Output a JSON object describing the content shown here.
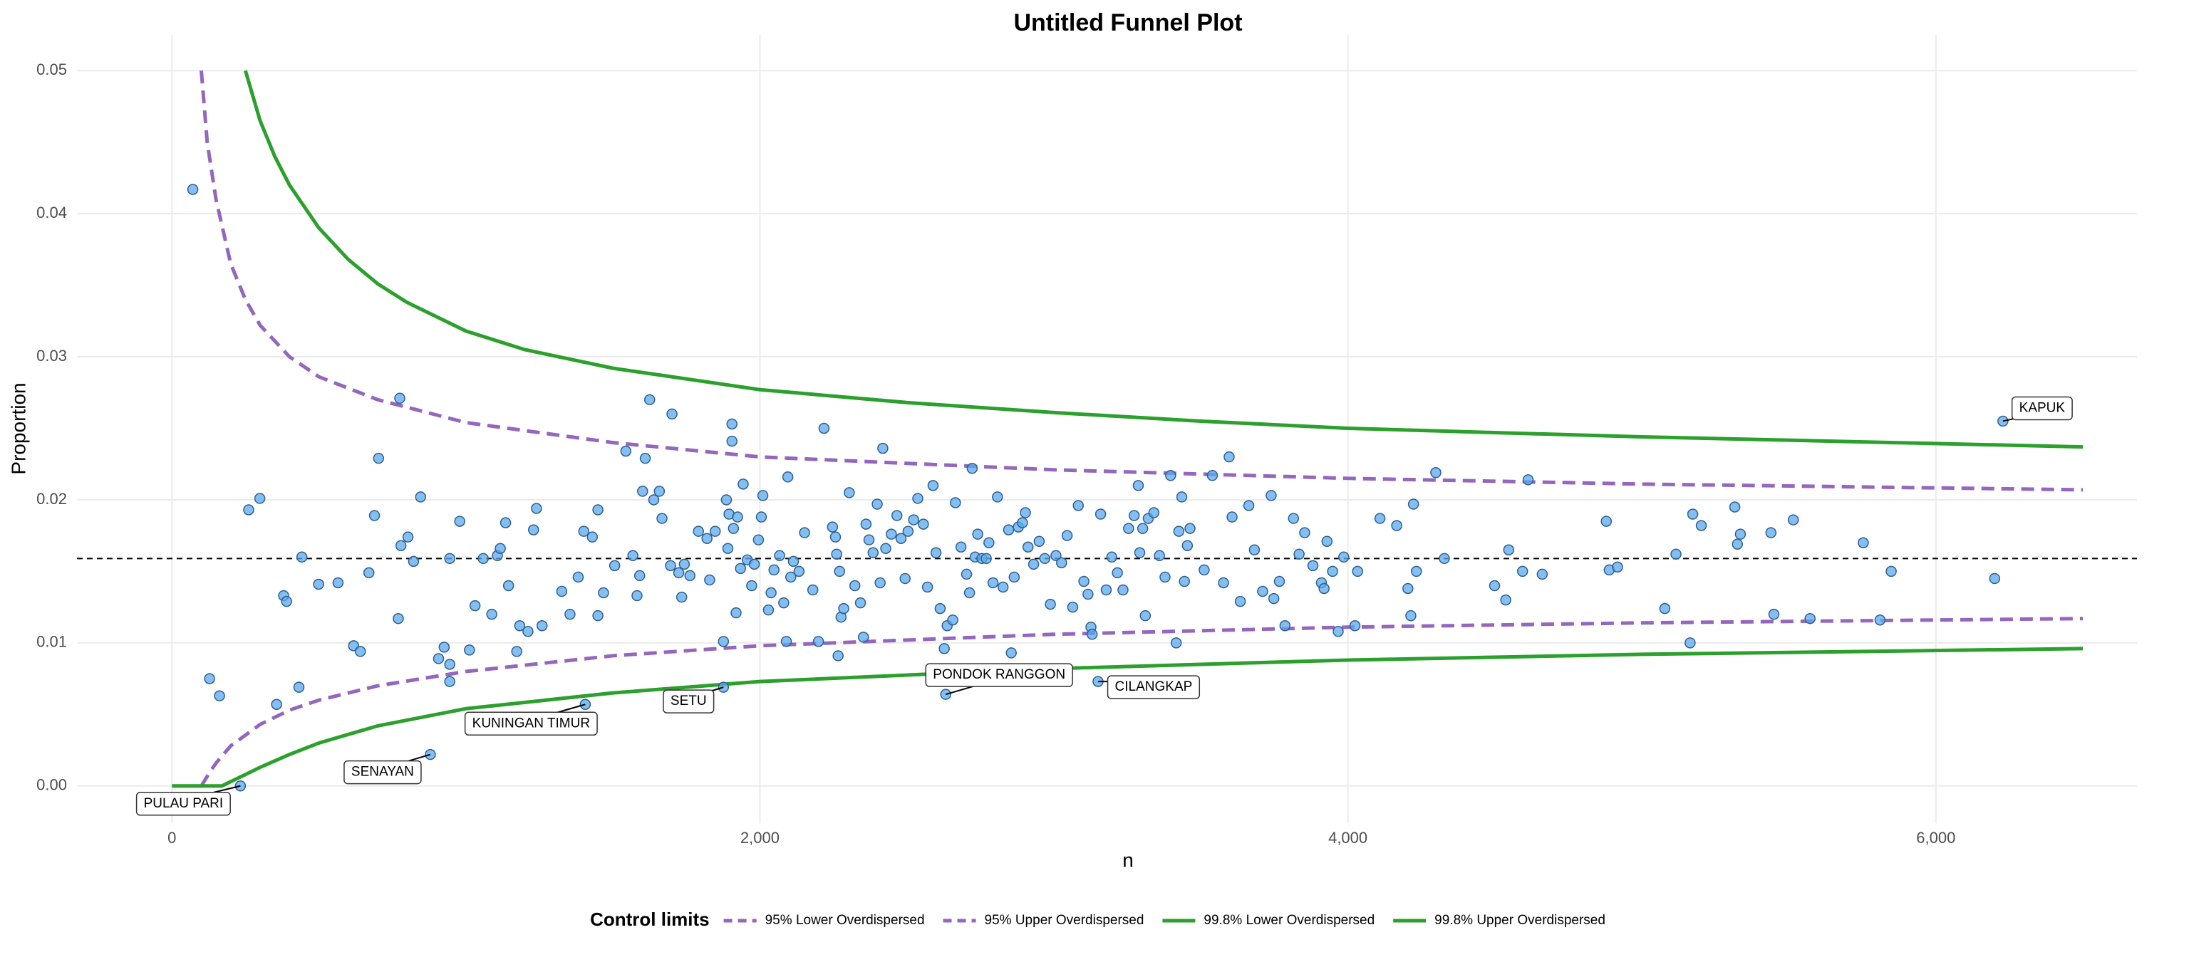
{
  "chart_data": {
    "type": "scatter",
    "title": "Untitled Funnel Plot",
    "x_label": "n",
    "y_label": "Proportion",
    "xlim": [
      -323,
      6684
    ],
    "ylim": [
      -0.0026,
      0.0525
    ],
    "xticks": [
      0,
      {
        "value": 2000,
        "label": "2,000"
      },
      {
        "value": 4000,
        "label": "4,000"
      },
      {
        "value": 6000,
        "label": "6,000"
      }
    ],
    "yticks": [
      {
        "value": 0,
        "label": "0.00"
      },
      0.01,
      0.02,
      0.03,
      0.04,
      0.05
    ],
    "grid": true,
    "reference_line": 0.0159,
    "points": {
      "color": "#5aaaf0",
      "x": [
        71,
        128,
        162,
        261,
        299,
        356,
        380,
        390,
        432,
        442,
        499,
        565,
        618,
        641,
        670,
        689,
        703,
        770,
        775,
        779,
        803,
        822,
        846,
        907,
        926,
        945,
        945,
        945,
        979,
        1012,
        1031,
        1059,
        1088,
        1107,
        1117,
        1135,
        1145,
        1173,
        1183,
        1211,
        1230,
        1240,
        1259,
        1326,
        1354,
        1382,
        1401,
        1430,
        1449,
        1449,
        1468,
        1506,
        1544,
        1568,
        1582,
        1591,
        1601,
        1610,
        1625,
        1639,
        1658,
        1667,
        1696,
        1701,
        1724,
        1734,
        1743,
        1762,
        1791,
        1820,
        1829,
        1848,
        1876,
        1886,
        1891,
        1895,
        1905,
        1905,
        1910,
        1919,
        1924,
        1934,
        1943,
        1957,
        1972,
        1981,
        1995,
        2005,
        2010,
        2029,
        2038,
        2048,
        2067,
        2081,
        2090,
        2095,
        2105,
        2114,
        2133,
        2152,
        2180,
        2199,
        2218,
        2247,
        2257,
        2261,
        2266,
        2271,
        2276,
        2285,
        2304,
        2323,
        2342,
        2352,
        2361,
        2371,
        2385,
        2399,
        2409,
        2418,
        2428,
        2447,
        2466,
        2480,
        2494,
        2504,
        2523,
        2537,
        2556,
        2570,
        2589,
        2599,
        2613,
        2627,
        2637,
        2656,
        2665,
        2684,
        2703,
        2713,
        2722,
        2732,
        2741,
        2755,
        2770,
        2779,
        2793,
        2808,
        2827,
        2846,
        2855,
        2865,
        2879,
        2893,
        2903,
        2912,
        2931,
        2950,
        2969,
        2988,
        3007,
        3026,
        3045,
        3064,
        3083,
        3102,
        3116,
        3126,
        3130,
        3159,
        3178,
        3197,
        3216,
        3235,
        3254,
        3273,
        3287,
        3292,
        3302,
        3311,
        3321,
        3340,
        3359,
        3378,
        3397,
        3416,
        3425,
        3435,
        3444,
        3454,
        3463,
        3511,
        3539,
        3577,
        3596,
        3606,
        3634,
        3663,
        3682,
        3710,
        3739,
        3748,
        3767,
        3786,
        3815,
        3834,
        3853,
        3881,
        3910,
        3919,
        3929,
        3948,
        3967,
        3986,
        4024,
        4033,
        4109,
        4166,
        4204,
        4214,
        4223,
        4233,
        4299,
        4328,
        4499,
        4537,
        4547,
        4594,
        4613,
        4661,
        4879,
        4889,
        4917,
        5078,
        5116,
        5164,
        5173,
        5202,
        5316,
        5325,
        5335,
        5439,
        5449,
        5515,
        5572,
        5753,
        5810,
        5848,
        6200,
        6228,
        233,
        879,
        1406,
        1876,
        2632,
        3150
      ],
      "values": [
        0.0417,
        0.0075,
        0.0063,
        0.0193,
        0.0201,
        0.0057,
        0.0133,
        0.0129,
        0.0069,
        0.016,
        0.0141,
        0.0142,
        0.0098,
        0.0094,
        0.0149,
        0.0189,
        0.0229,
        0.0117,
        0.0271,
        0.0168,
        0.0174,
        0.0157,
        0.0202,
        0.0089,
        0.0097,
        0.0073,
        0.0085,
        0.0159,
        0.0185,
        0.0095,
        0.0126,
        0.0159,
        0.012,
        0.0161,
        0.0166,
        0.0184,
        0.014,
        0.0094,
        0.0112,
        0.0108,
        0.0179,
        0.0194,
        0.0112,
        0.0136,
        0.012,
        0.0146,
        0.0178,
        0.0174,
        0.0119,
        0.0193,
        0.0135,
        0.0154,
        0.0234,
        0.0161,
        0.0133,
        0.0147,
        0.0206,
        0.0229,
        0.027,
        0.02,
        0.0206,
        0.0187,
        0.0154,
        0.026,
        0.0149,
        0.0132,
        0.0155,
        0.0147,
        0.0178,
        0.0173,
        0.0144,
        0.0178,
        0.0101,
        0.02,
        0.0166,
        0.019,
        0.0253,
        0.0241,
        0.018,
        0.0121,
        0.0188,
        0.0152,
        0.0211,
        0.0158,
        0.014,
        0.0155,
        0.0172,
        0.0188,
        0.0203,
        0.0123,
        0.0135,
        0.0151,
        0.0161,
        0.0128,
        0.0101,
        0.0216,
        0.0146,
        0.0157,
        0.015,
        0.0177,
        0.0137,
        0.0101,
        0.025,
        0.0181,
        0.0174,
        0.0162,
        0.0091,
        0.015,
        0.0118,
        0.0124,
        0.0205,
        0.014,
        0.0128,
        0.0104,
        0.0183,
        0.0172,
        0.0163,
        0.0197,
        0.0142,
        0.0236,
        0.0166,
        0.0176,
        0.0189,
        0.0173,
        0.0145,
        0.0178,
        0.0186,
        0.0201,
        0.0183,
        0.0139,
        0.021,
        0.0163,
        0.0124,
        0.0096,
        0.0112,
        0.0116,
        0.0198,
        0.0167,
        0.0148,
        0.0135,
        0.0222,
        0.016,
        0.0176,
        0.0159,
        0.0159,
        0.017,
        0.0142,
        0.0202,
        0.0139,
        0.0179,
        0.0093,
        0.0146,
        0.0181,
        0.0184,
        0.0191,
        0.0167,
        0.0155,
        0.0171,
        0.0159,
        0.0127,
        0.0161,
        0.0156,
        0.0175,
        0.0125,
        0.0196,
        0.0143,
        0.0134,
        0.0111,
        0.0106,
        0.019,
        0.0137,
        0.016,
        0.0149,
        0.0137,
        0.018,
        0.0189,
        0.021,
        0.0163,
        0.018,
        0.0119,
        0.0187,
        0.0191,
        0.0161,
        0.0146,
        0.0217,
        0.01,
        0.0178,
        0.0202,
        0.0143,
        0.0168,
        0.018,
        0.0151,
        0.0217,
        0.0142,
        0.023,
        0.0188,
        0.0129,
        0.0196,
        0.0165,
        0.0136,
        0.0203,
        0.0131,
        0.0143,
        0.0112,
        0.0187,
        0.0162,
        0.0177,
        0.0154,
        0.0142,
        0.0138,
        0.0171,
        0.015,
        0.0108,
        0.016,
        0.0112,
        0.015,
        0.0187,
        0.0182,
        0.0138,
        0.0119,
        0.0197,
        0.015,
        0.0219,
        0.0159,
        0.014,
        0.013,
        0.0165,
        0.015,
        0.0214,
        0.0148,
        0.0185,
        0.0151,
        0.0153,
        0.0124,
        0.0162,
        0.01,
        0.019,
        0.0182,
        0.0195,
        0.0169,
        0.0176,
        0.0177,
        0.012,
        0.0186,
        0.0117,
        0.017,
        0.0116,
        0.015,
        0.0145,
        0.0255,
        0.0,
        0.0022,
        0.0057,
        0.0069,
        0.0064,
        0.0073
      ]
    },
    "series": [
      {
        "name": "95% Lower Overdispersed",
        "color": "#9467bd",
        "dash": true,
        "x": [
          100,
          130,
          150,
          200,
          300,
          400,
          500,
          700,
          1000,
          1500,
          2000,
          3000,
          4000,
          5000,
          6500
        ],
        "values": [
          0,
          0.001,
          0.0016,
          0.0028,
          0.0043,
          0.0053,
          0.006,
          0.007,
          0.008,
          0.0091,
          0.0098,
          0.0106,
          0.0111,
          0.0114,
          0.0117
        ]
      },
      {
        "name": "95% Upper Overdispersed",
        "color": "#9467bd",
        "dash": true,
        "x": [
          100,
          120,
          150,
          200,
          250,
          300,
          400,
          500,
          700,
          1000,
          1500,
          2000,
          3000,
          4000,
          5000,
          6500
        ],
        "values": [
          0.05,
          0.045,
          0.041,
          0.0365,
          0.034,
          0.0322,
          0.03,
          0.0286,
          0.027,
          0.0254,
          0.024,
          0.023,
          0.0221,
          0.0215,
          0.0211,
          0.0207
        ]
      },
      {
        "name": "99.8% Lower Overdispersed",
        "color": "#2ca02c",
        "dash": false,
        "x": [
          0,
          170,
          200,
          250,
          300,
          400,
          500,
          700,
          1000,
          1500,
          2000,
          3000,
          4000,
          5000,
          6500
        ],
        "values": [
          0,
          0,
          0.0003,
          0.0008,
          0.0013,
          0.0022,
          0.003,
          0.0042,
          0.0054,
          0.0065,
          0.0073,
          0.0082,
          0.0088,
          0.0092,
          0.0096
        ]
      },
      {
        "name": "99.8% Upper Overdispersed",
        "color": "#2ca02c",
        "dash": false,
        "x": [
          250,
          300,
          350,
          400,
          500,
          600,
          700,
          800,
          1000,
          1200,
          1500,
          2000,
          2500,
          3000,
          3500,
          4000,
          5000,
          6500
        ],
        "values": [
          0.05,
          0.0465,
          0.044,
          0.042,
          0.039,
          0.0368,
          0.0351,
          0.0338,
          0.0318,
          0.0305,
          0.0292,
          0.0277,
          0.0268,
          0.0261,
          0.0255,
          0.025,
          0.0244,
          0.0237
        ]
      }
    ],
    "annotations": [
      {
        "text": "KAPUK",
        "x": 6228,
        "y": 0.0255
      },
      {
        "text": "PONDOK RANGGON",
        "x": 2632,
        "y": 0.0064
      },
      {
        "text": "CILANGKAP",
        "x": 3150,
        "y": 0.0073
      },
      {
        "text": "SETU",
        "x": 1876,
        "y": 0.0069
      },
      {
        "text": "KUNINGAN TIMUR",
        "x": 1406,
        "y": 0.0057
      },
      {
        "text": "SENAYAN",
        "x": 879,
        "y": 0.0022
      },
      {
        "text": "PULAU PARI",
        "x": 233,
        "y": 0.0
      }
    ],
    "legend": {
      "title": "Control limits",
      "position": "bottom"
    }
  }
}
